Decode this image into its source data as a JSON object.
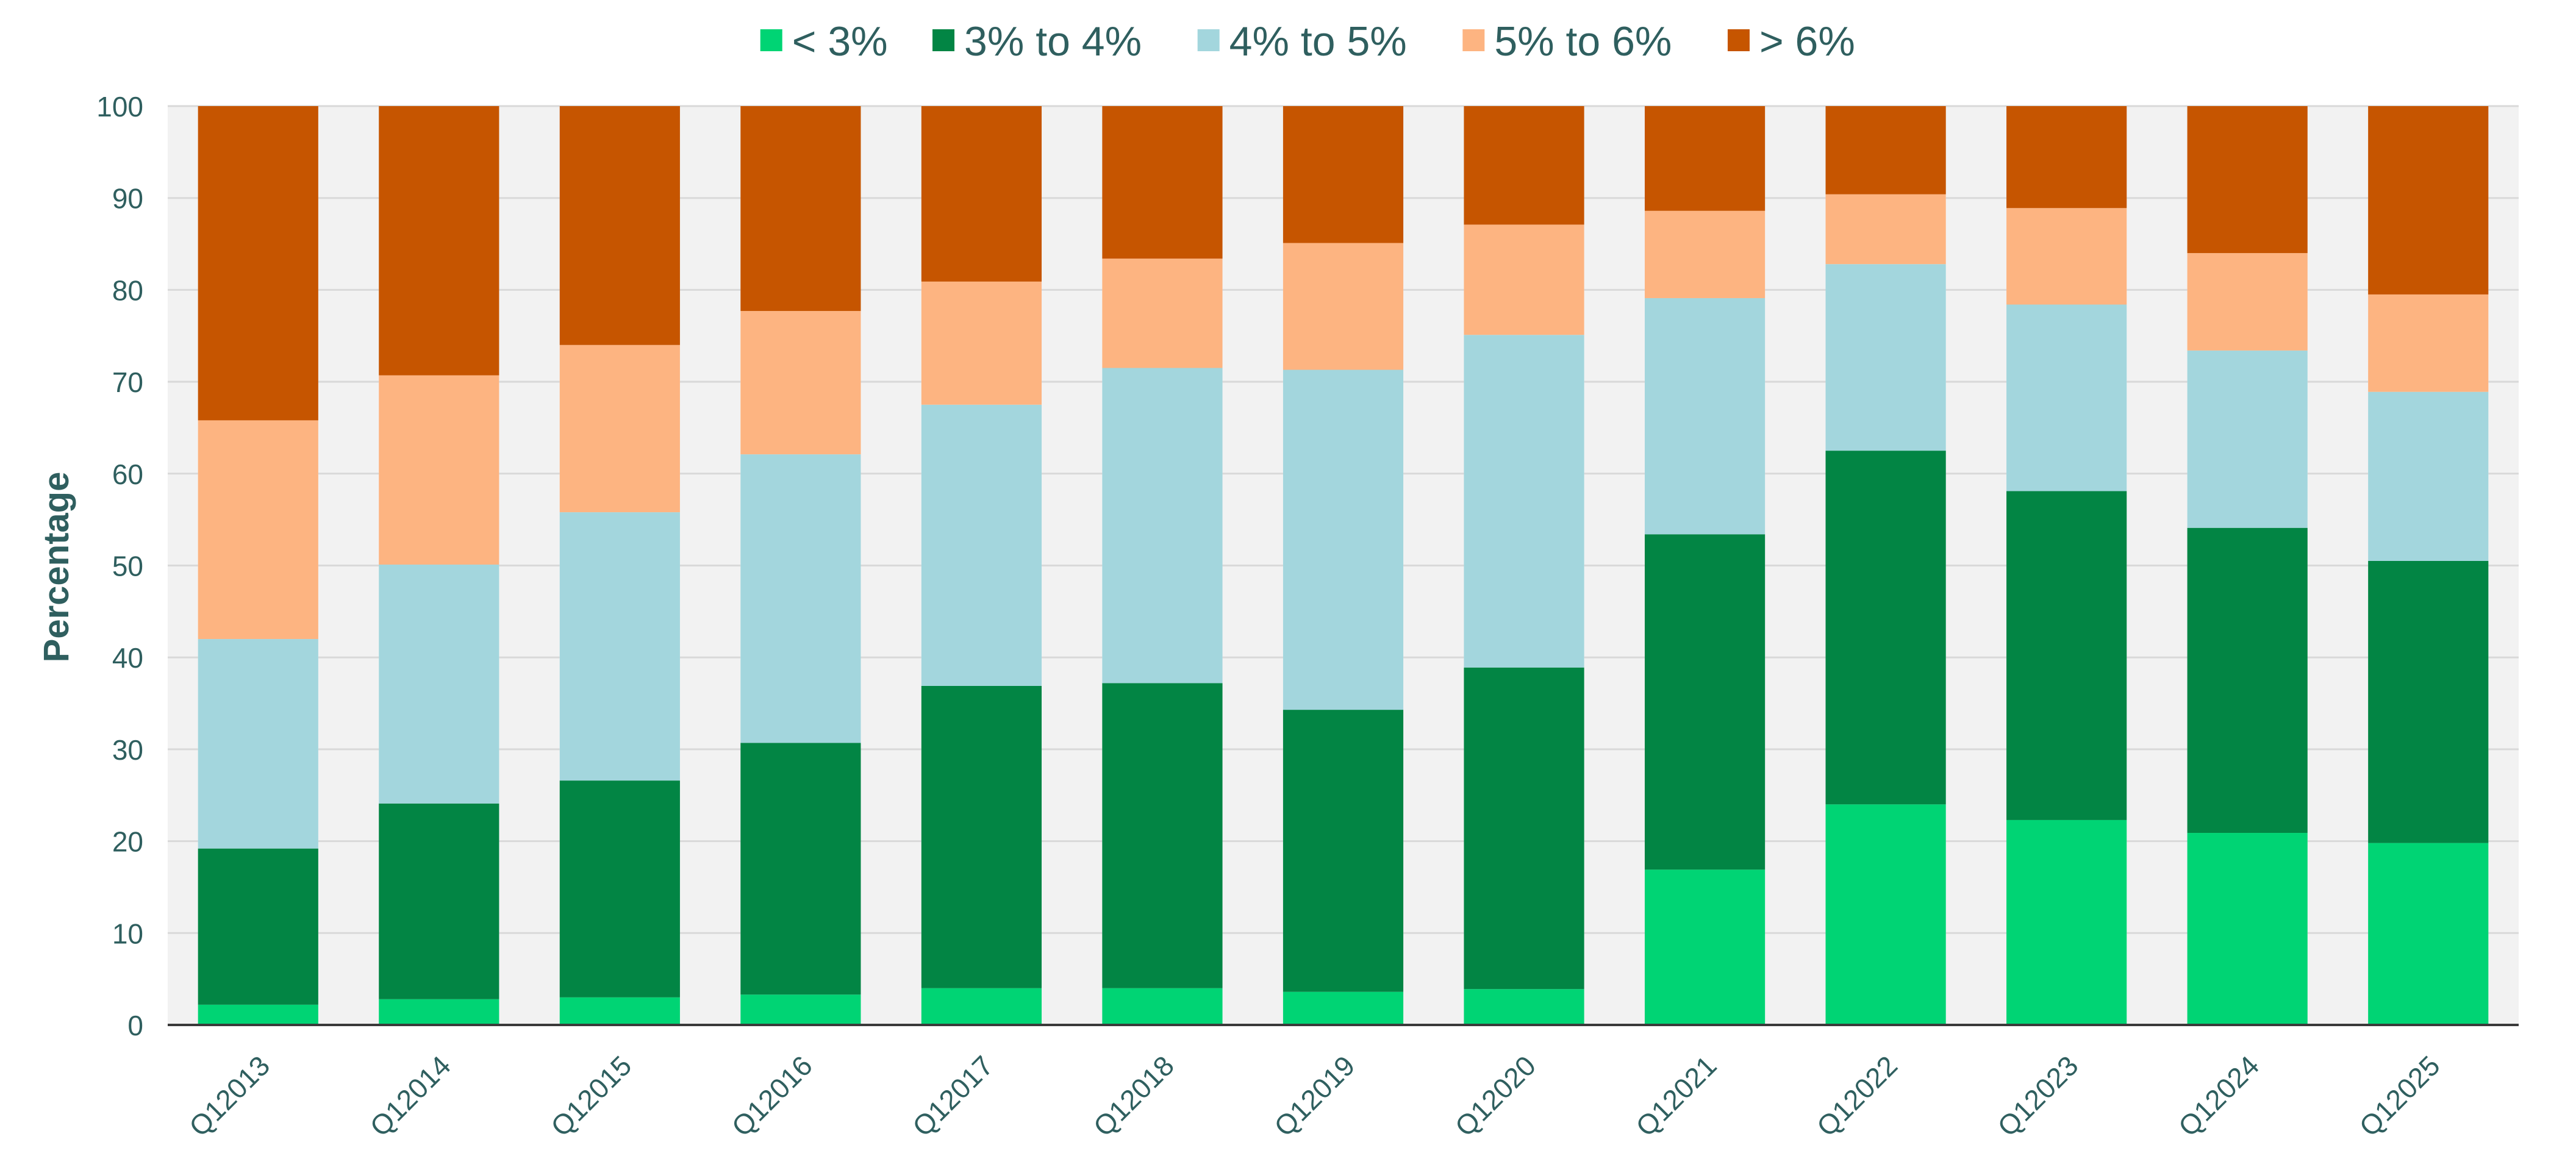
{
  "chart_data": {
    "type": "bar",
    "stacked": true,
    "title": "",
    "xlabel": "",
    "ylabel": "Percentage",
    "ylim": [
      0,
      100
    ],
    "yticks": [
      0,
      10,
      20,
      30,
      40,
      50,
      60,
      70,
      80,
      90,
      100
    ],
    "grid": true,
    "legend_position": "top-center",
    "categories": [
      "Q12013",
      "Q12014",
      "Q12015",
      "Q12016",
      "Q12017",
      "Q12018",
      "Q12019",
      "Q12020",
      "Q12021",
      "Q12022",
      "Q12023",
      "Q12024",
      "Q12025"
    ],
    "series": [
      {
        "name": "< 3%",
        "color": "#00d474",
        "values": [
          2.2,
          2.8,
          3.0,
          3.3,
          4.0,
          4.0,
          3.6,
          3.9,
          16.9,
          24.0,
          22.3,
          20.9,
          19.8
        ]
      },
      {
        "name": "3% to 4%",
        "color": "#028544",
        "values": [
          17.0,
          21.3,
          23.6,
          27.4,
          32.9,
          33.2,
          30.7,
          35.0,
          36.5,
          38.5,
          35.8,
          33.2,
          30.7
        ]
      },
      {
        "name": "4% to 5%",
        "color": "#a3d6dd",
        "values": [
          22.8,
          26.0,
          29.2,
          31.4,
          30.6,
          34.3,
          37.0,
          36.2,
          25.7,
          20.3,
          20.3,
          19.3,
          18.4
        ]
      },
      {
        "name": "5% to 6%",
        "color": "#fdb481",
        "values": [
          23.8,
          20.6,
          18.2,
          15.6,
          13.4,
          11.9,
          13.8,
          12.0,
          9.5,
          7.6,
          10.5,
          10.6,
          10.6
        ]
      },
      {
        "name": "> 6%",
        "color": "#c65500",
        "values": [
          34.2,
          29.3,
          26.0,
          22.3,
          19.1,
          16.6,
          14.9,
          12.9,
          11.4,
          9.6,
          11.1,
          16.0,
          20.5
        ]
      }
    ],
    "colors": {
      "plot_background": "#f2f2f2",
      "gridline": "#d9d9d9",
      "axis_text": "#2f5f5f",
      "axis_line": "#3a3a3a"
    }
  }
}
